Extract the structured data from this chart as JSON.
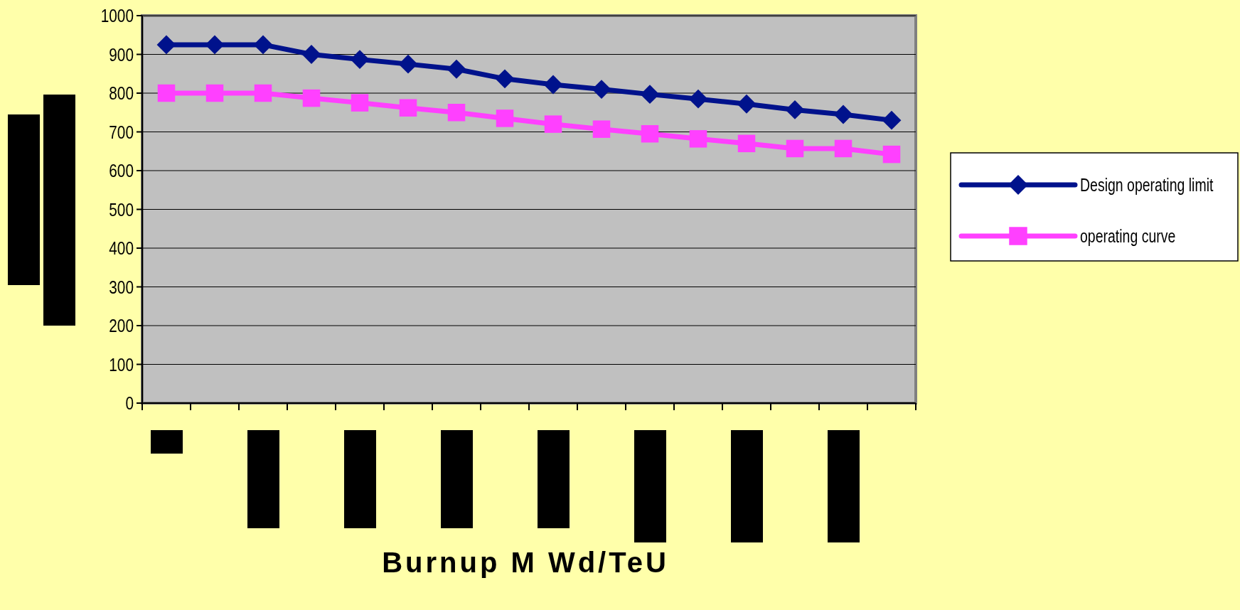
{
  "chart_data": {
    "type": "line",
    "xlabel": "Burnup M Wd/TeU",
    "categories": [
      null,
      null,
      null,
      null,
      null,
      null,
      null,
      null,
      null,
      null,
      null,
      null,
      null,
      null,
      null,
      null
    ],
    "series": [
      {
        "name": "Design operating limit",
        "color": "#00128c",
        "marker": "diamond",
        "values": [
          925,
          925,
          925,
          900,
          887,
          875,
          862,
          837,
          822,
          810,
          797,
          785,
          772,
          757,
          745,
          730
        ]
      },
      {
        "name": "operating curve",
        "color": "#ff40ff",
        "marker": "square",
        "values": [
          800,
          800,
          800,
          787,
          775,
          762,
          750,
          735,
          720,
          707,
          695,
          682,
          670,
          657,
          657,
          642
        ]
      }
    ],
    "ylim": [
      0,
      1000
    ],
    "yticks": [
      0,
      100,
      200,
      300,
      400,
      500,
      600,
      700,
      800,
      900,
      1000
    ],
    "grid": "y",
    "legend": "right",
    "line_style": "solid"
  }
}
